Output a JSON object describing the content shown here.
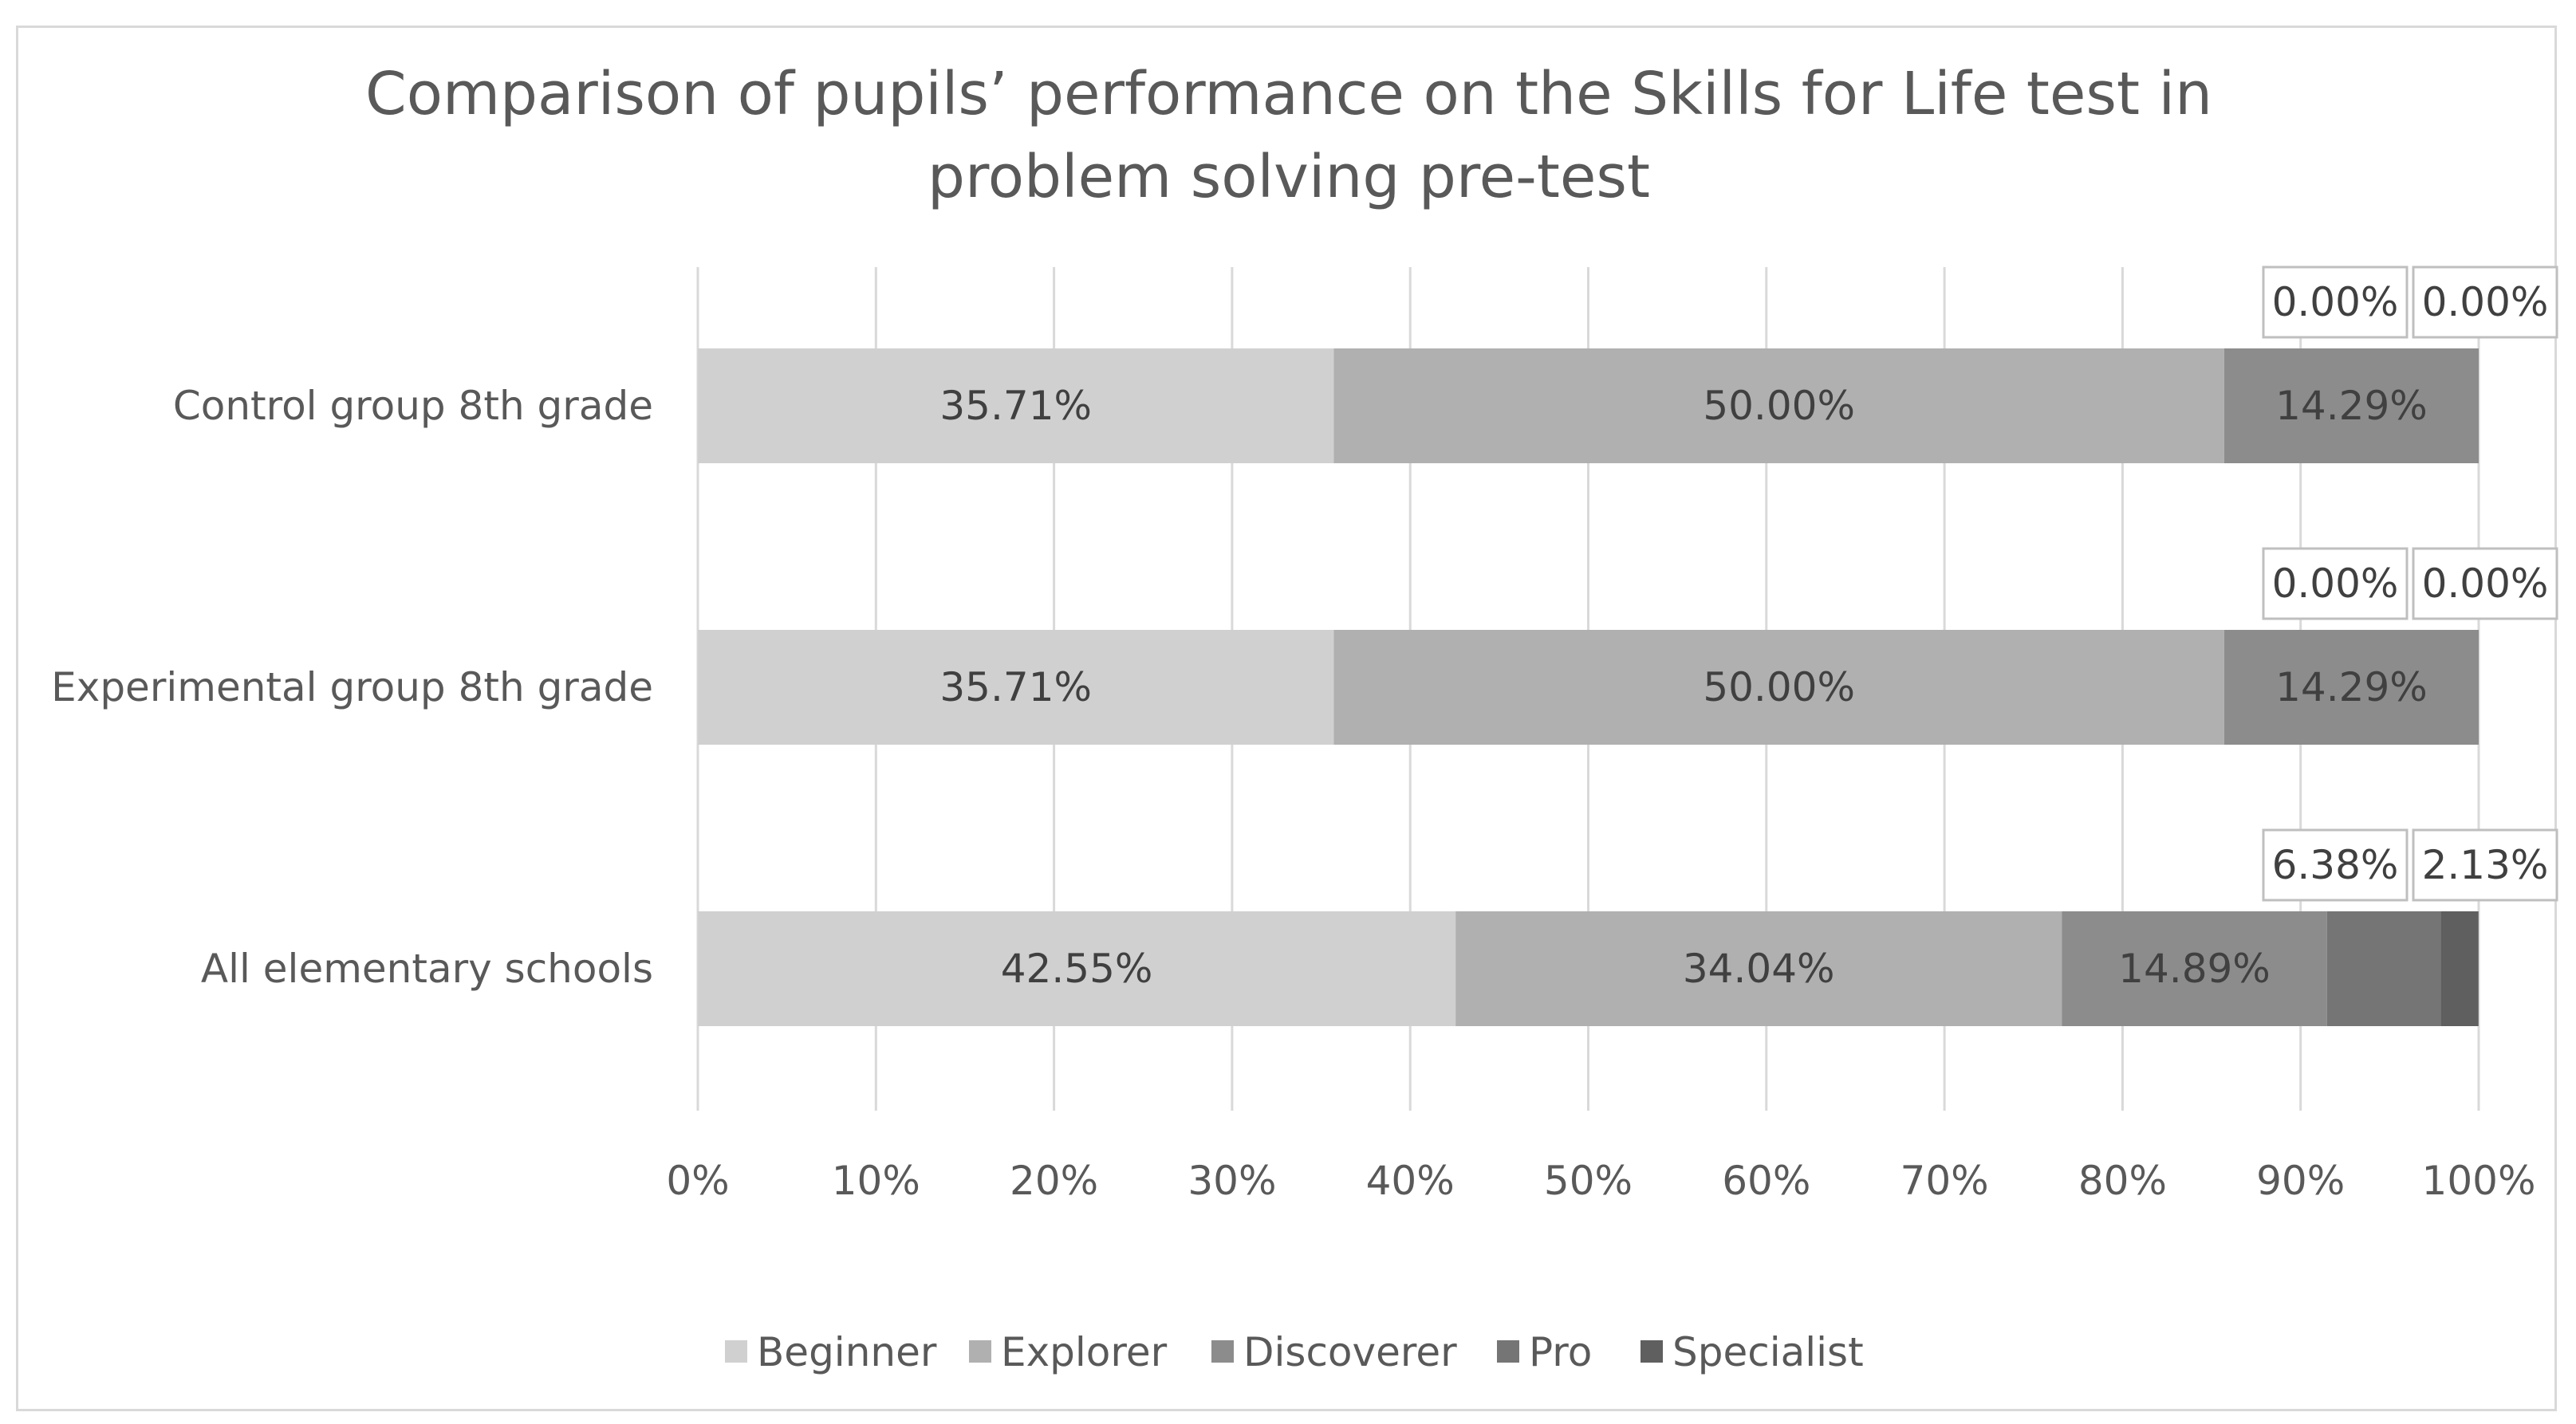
{
  "chart_data": {
    "type": "bar",
    "orientation": "horizontal",
    "stacked": "percent",
    "title": "Comparison of pupils’ performance on the Skills for Life test in problem solving pre-test",
    "title_lines": [
      "Comparison of pupils’ performance on the Skills for Life test in",
      "problem solving pre-test"
    ],
    "categories": [
      "Control group 8th grade",
      "Experimental group 8th grade",
      "All elementary schools"
    ],
    "series": [
      {
        "name": "Beginner",
        "color": "#d0d0d0",
        "values": [
          35.71,
          35.71,
          42.55
        ],
        "labels": [
          "35.71%",
          "35.71%",
          "42.55%"
        ]
      },
      {
        "name": "Explorer",
        "color": "#b0b0b0",
        "values": [
          50.0,
          50.0,
          34.04
        ],
        "labels": [
          "50.00%",
          "50.00%",
          "34.04%"
        ]
      },
      {
        "name": "Discoverer",
        "color": "#8c8c8c",
        "values": [
          14.29,
          14.29,
          14.89
        ],
        "labels": [
          "14.29%",
          "14.29%",
          "14.89%"
        ]
      },
      {
        "name": "Pro",
        "color": "#757575",
        "values": [
          0.0,
          0.0,
          6.38
        ],
        "labels": [
          "0.00%",
          "0.00%",
          "6.38%"
        ]
      },
      {
        "name": "Specialist",
        "color": "#5f5f5f",
        "values": [
          0.0,
          0.0,
          2.13
        ],
        "labels": [
          "0.00%",
          "0.00%",
          "2.13%"
        ]
      }
    ],
    "xlim": [
      0,
      100
    ],
    "xticks": [
      0,
      10,
      20,
      30,
      40,
      50,
      60,
      70,
      80,
      90,
      100
    ],
    "xtick_labels": [
      "0%",
      "10%",
      "20%",
      "30%",
      "40%",
      "50%",
      "60%",
      "70%",
      "80%",
      "90%",
      "100%"
    ],
    "grid": true,
    "legend_position": "bottom",
    "xlabel": "",
    "ylabel": ""
  }
}
